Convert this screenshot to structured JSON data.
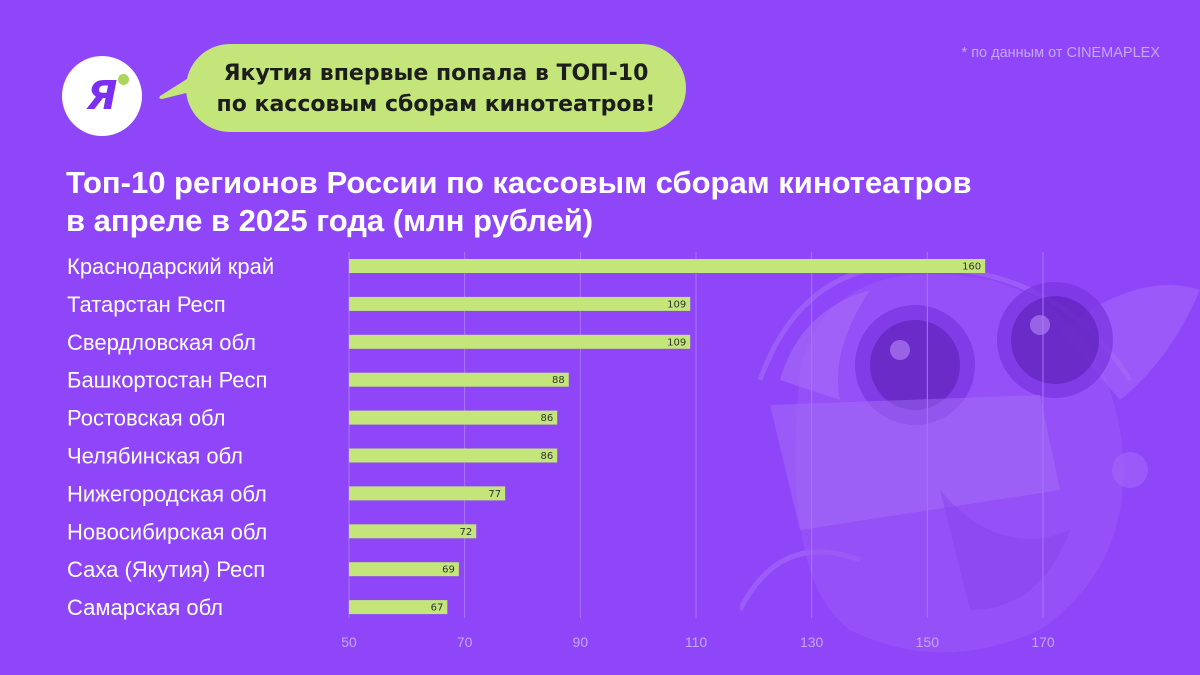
{
  "logo": {
    "letter": "Я"
  },
  "bubble": {
    "line1": "Якутия впервые попала в ТОП-10",
    "line2": "по кассовым сборам кинотеатров!"
  },
  "source_note": "* по данным от CINEMAPLEX",
  "colors": {
    "background": "#8e46f8",
    "bar": "#c3e579",
    "bubble": "#c3e579",
    "accent_dot": "#a9d65b",
    "logo_letter": "#7b2ff0"
  },
  "chart_data": {
    "type": "bar",
    "orientation": "horizontal",
    "title": "Топ-10 регионов России по кассовым сборам кинотеатров",
    "title_line2": "в апреле в 2025 года (млн рублей)",
    "categories": [
      "Краснодарский край",
      "Татарстан Респ",
      "Свердловская обл",
      "Башкортостан Респ",
      "Ростовская обл",
      "Челябинская обл",
      "Нижегородская обл",
      "Новосибирская обл",
      "Саха (Якутия) Респ",
      "Самарская обл"
    ],
    "values": [
      160,
      109,
      109,
      88,
      86,
      86,
      77,
      72,
      69,
      67
    ],
    "xlim": [
      50,
      170
    ],
    "xticks": [
      50,
      70,
      90,
      110,
      130,
      150,
      170
    ],
    "grid": true,
    "xlabel": "",
    "ylabel": ""
  }
}
